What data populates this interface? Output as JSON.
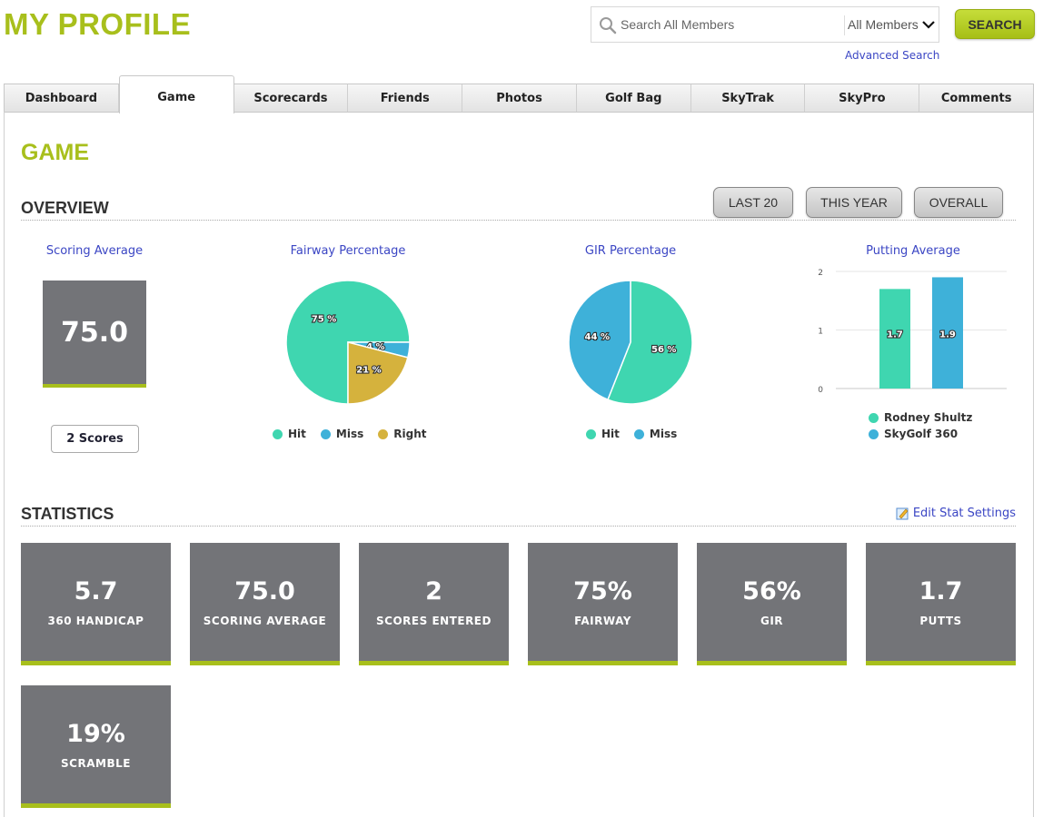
{
  "header": {
    "title": "MY PROFILE",
    "search_placeholder": "Search All Members",
    "search_scope": "All Members",
    "search_button": "SEARCH",
    "advanced_search": "Advanced Search"
  },
  "tabs": [
    {
      "label": "Dashboard",
      "active": false
    },
    {
      "label": "Game",
      "active": true
    },
    {
      "label": "Scorecards",
      "active": false
    },
    {
      "label": "Friends",
      "active": false
    },
    {
      "label": "Photos",
      "active": false
    },
    {
      "label": "Golf Bag",
      "active": false
    },
    {
      "label": "SkyTrak",
      "active": false
    },
    {
      "label": "SkyPro",
      "active": false
    },
    {
      "label": "Comments",
      "active": false
    }
  ],
  "game": {
    "heading": "GAME",
    "overview_label": "OVERVIEW",
    "filters": [
      "LAST 20",
      "THIS YEAR",
      "OVERALL"
    ],
    "scoring_average": {
      "title": "Scoring Average",
      "value": "75.0",
      "scores_button": "2 Scores"
    },
    "fairway_title": "Fairway Percentage",
    "gir_title": "GIR Percentage",
    "putting_title": "Putting Average",
    "statistics_label": "STATISTICS",
    "edit_stats": "Edit Stat Settings"
  },
  "colors": {
    "accent": "#a8bf1c",
    "hit": "#3fd6b0",
    "miss": "#3eb1d9",
    "right": "#d5b23d",
    "card": "#737478",
    "link": "#3b46c4"
  },
  "chart_data": [
    {
      "type": "pie",
      "title": "Fairway Percentage",
      "categories": [
        "Hit",
        "Miss",
        "Right"
      ],
      "values": [
        75,
        4,
        21
      ],
      "data_labels": [
        "75 %",
        "4 %",
        "21 %"
      ],
      "colors": [
        "#3fd6b0",
        "#3eb1d9",
        "#d5b23d"
      ]
    },
    {
      "type": "pie",
      "title": "GIR Percentage",
      "categories": [
        "Hit",
        "Miss"
      ],
      "values": [
        56,
        44
      ],
      "data_labels": [
        "56 %",
        "44 %"
      ],
      "colors": [
        "#3fd6b0",
        "#3eb1d9"
      ]
    },
    {
      "type": "bar",
      "title": "Putting Average",
      "categories": [
        "Rodney Shultz",
        "SkyGolf 360"
      ],
      "values": [
        1.7,
        1.9
      ],
      "data_labels": [
        "1.7",
        "1.9"
      ],
      "ylim": [
        0,
        2
      ],
      "yticks": [
        "0",
        "1",
        "2"
      ],
      "colors": [
        "#3fd6b0",
        "#3eb1d9"
      ],
      "grid": true,
      "legend": "bottom"
    }
  ],
  "stats": [
    {
      "value": "5.7",
      "label": "360 HANDICAP"
    },
    {
      "value": "75.0",
      "label": "SCORING AVERAGE"
    },
    {
      "value": "2",
      "label": "SCORES ENTERED"
    },
    {
      "value": "75%",
      "label": "FAIRWAY"
    },
    {
      "value": "56%",
      "label": "GIR"
    },
    {
      "value": "1.7",
      "label": "PUTTS"
    },
    {
      "value": "19%",
      "label": "SCRAMBLE"
    }
  ]
}
